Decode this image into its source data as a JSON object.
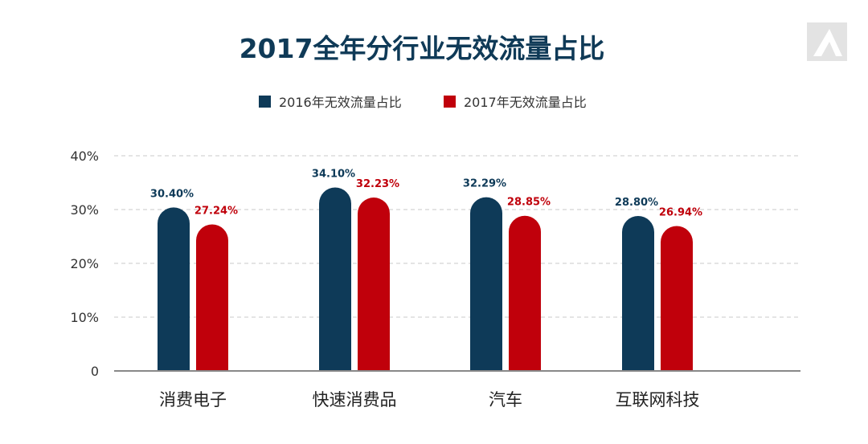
{
  "colors": {
    "series_2016": "#0e3a58",
    "series_2017": "#c0000b",
    "grid": "#c8c8c8",
    "axis": "#888888",
    "title": "#0f3a57"
  },
  "chart_data": {
    "type": "bar",
    "title": "2017全年分行业无效流量占比",
    "xlabel": "",
    "ylabel": "",
    "categories": [
      "消费电子",
      "快速消费品",
      "汽车",
      "互联网科技"
    ],
    "series": [
      {
        "name": "2016年无效流量占比",
        "values": [
          30.4,
          34.1,
          32.29,
          28.8
        ],
        "labels": [
          "30.40%",
          "34.10%",
          "32.29%",
          "28.80%"
        ]
      },
      {
        "name": "2017年无效流量占比",
        "values": [
          27.24,
          32.23,
          28.85,
          26.94
        ],
        "labels": [
          "27.24%",
          "32.23%",
          "28.85%",
          "26.94%"
        ]
      }
    ],
    "ylim": [
      0,
      40
    ],
    "yticks": [
      0,
      10,
      20,
      30,
      40
    ],
    "ytick_labels": [
      "0",
      "10%",
      "20%",
      "30%",
      "40%"
    ],
    "grid": true,
    "legend_position": "top"
  }
}
